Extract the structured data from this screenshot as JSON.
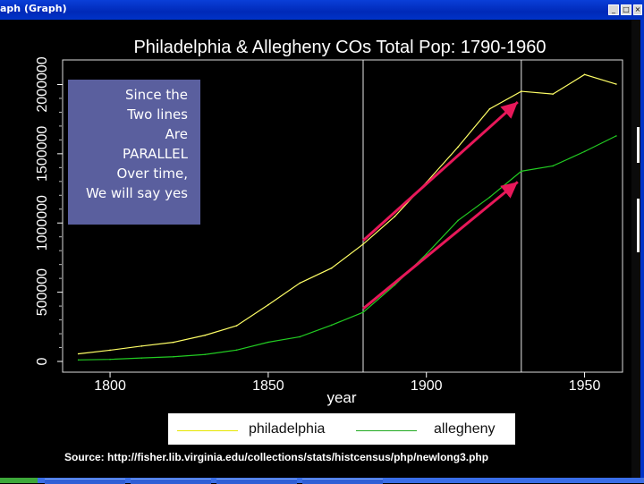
{
  "window": {
    "title": "aph (Graph)",
    "buttons": [
      "_",
      "□",
      "×"
    ]
  },
  "note": {
    "lines": [
      "Since the",
      "Two lines",
      "Are",
      "PARALLEL",
      "Over time,",
      "We will say yes"
    ]
  },
  "legend": {
    "entries": [
      {
        "label": "philadelphia",
        "color": "#ffff66"
      },
      {
        "label": "allegheny",
        "color": "#00cc00"
      }
    ]
  },
  "source": "Source: http://fisher.lib.virginia.edu/collections/stats/histcensus/php/newlong3.php",
  "colors": {
    "background": "#000000",
    "arrows": "#e8185a",
    "note_box": "#5a5f9e"
  },
  "chart_data": {
    "type": "line",
    "title": "Philadelphia & Allegheny COs Total Pop: 1790-1960",
    "xlabel": "year",
    "ylabel": "",
    "xlim": [
      1785,
      1962
    ],
    "ylim": [
      0,
      2100000
    ],
    "xticks": [
      1800,
      1850,
      1900,
      1950
    ],
    "yticks": [
      0,
      500000,
      1000000,
      1500000,
      2000000
    ],
    "x": [
      1790,
      1800,
      1810,
      1820,
      1830,
      1840,
      1850,
      1860,
      1870,
      1880,
      1890,
      1900,
      1910,
      1920,
      1930,
      1940,
      1950,
      1960
    ],
    "series": [
      {
        "name": "philadelphia",
        "color": "#ffff66",
        "values": [
          55000,
          81000,
          111000,
          138000,
          189000,
          258000,
          409000,
          566000,
          674000,
          847000,
          1047000,
          1293000,
          1549000,
          1824000,
          1951000,
          1931000,
          2072000,
          2003000
        ]
      },
      {
        "name": "allegheny",
        "color": "#22cc22",
        "values": [
          11000,
          15000,
          25000,
          34000,
          50000,
          82000,
          139000,
          178000,
          262000,
          355000,
          552000,
          776000,
          1018000,
          1186000,
          1374000,
          1412000,
          1516000,
          1629000
        ]
      }
    ],
    "vlines": [
      1880,
      1930
    ],
    "arrows": [
      {
        "from": [
          1880,
          847000
        ],
        "to": [
          1930,
          1951000
        ]
      },
      {
        "from": [
          1880,
          355000
        ],
        "to": [
          1930,
          1374000
        ]
      }
    ]
  }
}
